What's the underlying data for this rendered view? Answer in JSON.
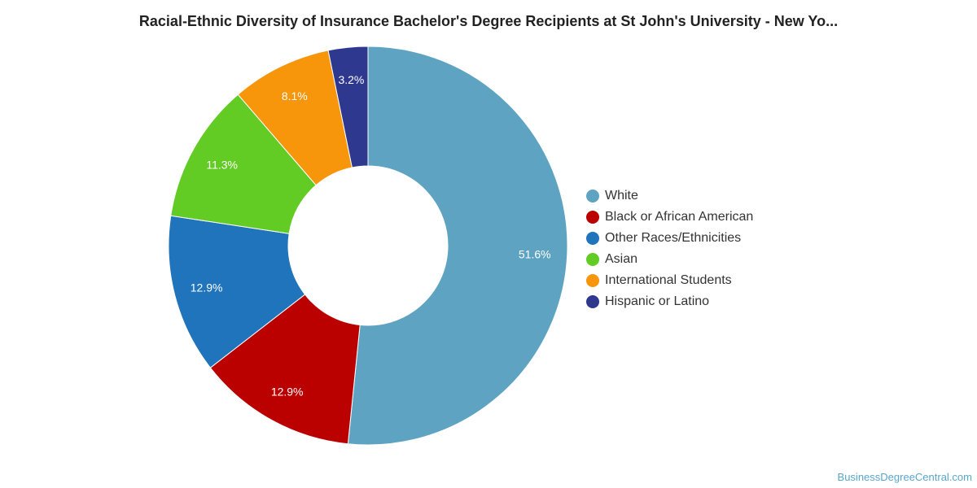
{
  "chart_data": {
    "type": "pie",
    "title": "Racial-Ethnic Diversity of Insurance Bachelor's Degree Recipients at St John's University - New Yo...",
    "legend_position": "right",
    "donut": true,
    "slices": [
      {
        "name": "White",
        "value": 51.6,
        "label": "51.6%",
        "color": "#5ea3c1"
      },
      {
        "name": "Black or African American",
        "value": 12.9,
        "label": "12.9%",
        "color": "#bb0000"
      },
      {
        "name": "Other Races/Ethnicities",
        "value": 12.9,
        "label": "12.9%",
        "color": "#1f74bb"
      },
      {
        "name": "Asian",
        "value": 11.3,
        "label": "11.3%",
        "color": "#62cb24"
      },
      {
        "name": "International Students",
        "value": 8.1,
        "label": "8.1%",
        "color": "#f7950b"
      },
      {
        "name": "Hispanic or Latino",
        "value": 3.2,
        "label": "3.2%",
        "color": "#2e388f"
      }
    ]
  },
  "source": "BusinessDegreeCentral.com"
}
